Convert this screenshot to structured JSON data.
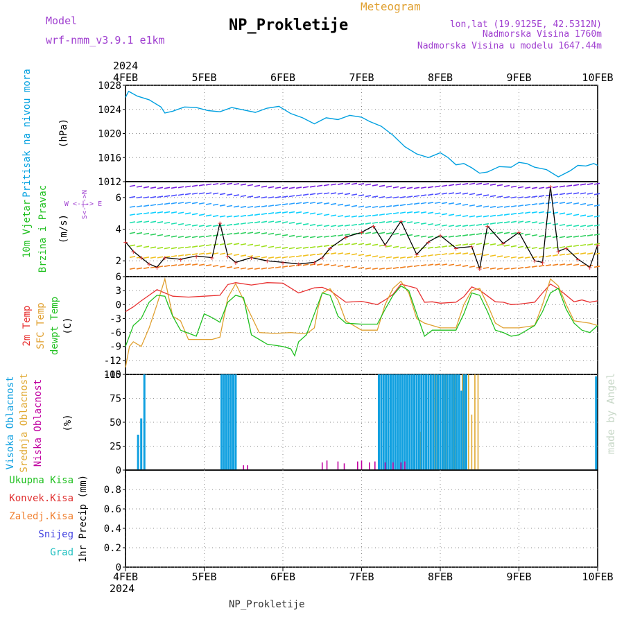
{
  "header": {
    "meteogram_label": "Meteogram",
    "title": "NP_Prokletije",
    "model_label": "Model",
    "model_name": "wrf-nmm_v3.9.1 e1km",
    "lonlat": "lon,lat (19.9125E, 42.5312N)",
    "elevation": "Nadmorska Visina 1760m",
    "model_elevation": "Nadmorska Visina u modelu 1647.44m",
    "footer_title": "NP_Prokletije",
    "watermark": "made by Angel"
  },
  "colors": {
    "pressure": "#00a0e0",
    "temp2m": "#e83030",
    "sfc_temp": "#e0a030",
    "dewpt": "#20c020",
    "cloud_high": "#10a0e0",
    "cloud_mid": "#e0a830",
    "cloud_low": "#c000a0",
    "title_purple": "#a040d0",
    "meteogram_orange": "#e0a030"
  },
  "x_axis": {
    "year": "2024",
    "ticks": [
      "4FEB",
      "5FEB",
      "6FEB",
      "7FEB",
      "8FEB",
      "9FEB",
      "10FEB"
    ]
  },
  "chart_data": [
    {
      "type": "line",
      "ylabel_line1": "Pritisak na nivou mora",
      "ylabel_units": "(hPa)",
      "ylim": [
        1012,
        1028
      ],
      "yticks": [
        "1012",
        "1016",
        "1020",
        "1024",
        "1028"
      ],
      "x_days": [
        0,
        0.04,
        0.15,
        0.3,
        0.45,
        0.5,
        0.6,
        0.75,
        0.9,
        1.05,
        1.2,
        1.35,
        1.5,
        1.65,
        1.8,
        1.95,
        2.1,
        2.25,
        2.4,
        2.55,
        2.7,
        2.85,
        3.0,
        3.1,
        3.25,
        3.4,
        3.55,
        3.7,
        3.85,
        4.0,
        4.1,
        4.2,
        4.3,
        4.4,
        4.5,
        4.6,
        4.75,
        4.9,
        5.0,
        5.1,
        5.2,
        5.35,
        5.5,
        5.65,
        5.75,
        5.85,
        5.95,
        6.0
      ],
      "values": [
        1026.0,
        1027.0,
        1026.2,
        1025.6,
        1024.4,
        1023.4,
        1023.7,
        1024.4,
        1024.3,
        1023.8,
        1023.6,
        1024.3,
        1023.9,
        1023.5,
        1024.2,
        1024.5,
        1023.3,
        1022.6,
        1021.6,
        1022.6,
        1022.3,
        1023.0,
        1022.7,
        1022.0,
        1021.2,
        1019.7,
        1017.8,
        1016.6,
        1016.0,
        1016.8,
        1016.0,
        1014.8,
        1015.0,
        1014.3,
        1013.4,
        1013.6,
        1014.5,
        1014.4,
        1015.2,
        1015.0,
        1014.4,
        1014.0,
        1012.8,
        1013.8,
        1014.7,
        1014.6,
        1015.0,
        1014.7
      ]
    },
    {
      "type": "line",
      "ylabel_line1": "10m Vjetar",
      "ylabel_line2": "Brzina i Pravac",
      "ylabel_units": "(m/s)",
      "compass": "W <-|-> E",
      "compass_vertical": "S<-|->N",
      "ylim": [
        1,
        7
      ],
      "yticks": [
        "2",
        "4",
        "6"
      ],
      "x_days": [
        0,
        0.1,
        0.2,
        0.3,
        0.4,
        0.5,
        0.7,
        0.9,
        1.1,
        1.2,
        1.3,
        1.4,
        1.6,
        1.8,
        2.0,
        2.2,
        2.4,
        2.5,
        2.6,
        2.8,
        3.0,
        3.15,
        3.3,
        3.5,
        3.7,
        3.85,
        4.0,
        4.2,
        4.4,
        4.5,
        4.6,
        4.8,
        5.0,
        5.2,
        5.3,
        5.4,
        5.5,
        5.6,
        5.75,
        5.9,
        6.0
      ],
      "values": [
        3.2,
        2.6,
        2.2,
        1.8,
        1.6,
        2.2,
        2.1,
        2.3,
        2.2,
        4.4,
        2.3,
        1.9,
        2.2,
        2.0,
        1.9,
        1.8,
        1.9,
        2.2,
        2.8,
        3.5,
        3.8,
        4.2,
        3.0,
        4.5,
        2.4,
        3.2,
        3.6,
        2.8,
        2.9,
        1.5,
        4.2,
        3.1,
        3.8,
        2.0,
        1.9,
        6.7,
        2.6,
        2.8,
        2.1,
        1.6,
        3.0
      ]
    },
    {
      "type": "line",
      "ylabel_line1": "2m Temp",
      "ylabel_line2": "SFC Temp",
      "ylabel_line3": "dewpt Temp",
      "ylabel_units": "(C)",
      "ylim": [
        -15,
        6
      ],
      "yticks": [
        "-15",
        "-12",
        "-9",
        "-6",
        "-3",
        "0",
        "3",
        "6"
      ],
      "series": [
        {
          "name": "2m Temp",
          "x_days": [
            0,
            0.1,
            0.2,
            0.3,
            0.4,
            0.5,
            0.6,
            0.8,
            1.0,
            1.2,
            1.3,
            1.4,
            1.6,
            1.8,
            2.0,
            2.2,
            2.4,
            2.5,
            2.6,
            2.8,
            3.0,
            3.2,
            3.3,
            3.4,
            3.5,
            3.7,
            3.8,
            3.9,
            4.0,
            4.2,
            4.3,
            4.4,
            4.5,
            4.7,
            4.8,
            4.9,
            5.0,
            5.2,
            5.3,
            5.4,
            5.5,
            5.7,
            5.8,
            5.9,
            6.0
          ],
          "values": [
            -1.5,
            -0.5,
            0.8,
            2.0,
            3.2,
            2.5,
            1.8,
            1.6,
            1.8,
            2.0,
            4.3,
            4.7,
            4.2,
            4.7,
            4.6,
            2.5,
            3.6,
            3.7,
            3.0,
            0.5,
            0.7,
            0.0,
            1.0,
            2.2,
            4.4,
            3.5,
            0.5,
            0.6,
            0.3,
            0.5,
            1.7,
            3.8,
            3.1,
            0.6,
            0.5,
            0.0,
            0.1,
            0.5,
            2.5,
            4.4,
            3.4,
            0.6,
            1.0,
            0.5,
            0.8
          ]
        },
        {
          "name": "SFC Temp",
          "x_days": [
            0,
            0.05,
            0.1,
            0.2,
            0.3,
            0.4,
            0.5,
            0.6,
            0.7,
            0.8,
            1.0,
            1.1,
            1.2,
            1.3,
            1.4,
            1.5,
            1.7,
            1.9,
            2.1,
            2.3,
            2.4,
            2.45,
            2.5,
            2.6,
            2.7,
            2.8,
            3.0,
            3.2,
            3.3,
            3.4,
            3.5,
            3.6,
            3.7,
            3.8,
            4.0,
            4.2,
            4.3,
            4.4,
            4.5,
            4.6,
            4.7,
            4.8,
            5.0,
            5.2,
            5.3,
            5.4,
            5.5,
            5.6,
            5.7,
            5.9,
            6.0
          ],
          "values": [
            -13.5,
            -9.0,
            -8.0,
            -9.0,
            -5.0,
            0.0,
            5.5,
            -2.5,
            -3.5,
            -7.5,
            -7.5,
            -7.5,
            -7.0,
            1.5,
            4.5,
            1.0,
            -6.0,
            -6.2,
            -6.0,
            -6.3,
            -5.0,
            -0.5,
            2.5,
            3.4,
            1.0,
            -3.5,
            -5.5,
            -5.5,
            0.0,
            3.5,
            5.0,
            2.5,
            -3.0,
            -4.0,
            -5.0,
            -5.0,
            0.0,
            3.0,
            3.5,
            0.0,
            -4.0,
            -5.0,
            -5.0,
            -4.5,
            0.0,
            5.5,
            4.0,
            0.0,
            -3.5,
            -4.0,
            -4.5
          ]
        },
        {
          "name": "dewpt Temp",
          "x_days": [
            0,
            0.1,
            0.2,
            0.3,
            0.4,
            0.5,
            0.6,
            0.7,
            0.9,
            1.0,
            1.1,
            1.2,
            1.3,
            1.4,
            1.5,
            1.6,
            1.8,
            2.0,
            2.1,
            2.15,
            2.2,
            2.3,
            2.4,
            2.5,
            2.6,
            2.7,
            2.8,
            3.0,
            3.2,
            3.3,
            3.4,
            3.5,
            3.6,
            3.7,
            3.8,
            3.9,
            4.0,
            4.2,
            4.3,
            4.4,
            4.5,
            4.6,
            4.7,
            4.8,
            4.9,
            5.0,
            5.2,
            5.3,
            5.4,
            5.5,
            5.6,
            5.7,
            5.8,
            5.9,
            6.0
          ],
          "values": [
            -9.0,
            -4.5,
            -3.0,
            0.5,
            2.0,
            1.8,
            -2.5,
            -5.5,
            -6.8,
            -2.0,
            -2.8,
            -3.8,
            0.5,
            2.0,
            1.5,
            -6.5,
            -8.5,
            -9.0,
            -9.5,
            -11.0,
            -8.0,
            -6.5,
            -2.0,
            2.5,
            2.0,
            -2.5,
            -4.0,
            -4.2,
            -4.2,
            -1.0,
            2.0,
            4.0,
            3.0,
            -2.0,
            -6.8,
            -5.5,
            -5.5,
            -5.5,
            -2.0,
            2.5,
            2.0,
            -1.5,
            -5.5,
            -6.0,
            -6.8,
            -6.5,
            -4.5,
            -1.5,
            2.5,
            3.5,
            -1.0,
            -4.0,
            -5.5,
            -6.0,
            -4.5
          ]
        }
      ]
    },
    {
      "type": "bar",
      "ylabel_line1": "Visoka Oblacnost",
      "ylabel_line2": "Srednja Oblacnost",
      "ylabel_line3": "Niska Oblacnost",
      "ylabel_units": "(%)",
      "ylim": [
        0,
        100
      ],
      "yticks": [
        "0",
        "25",
        "50",
        "75",
        "100"
      ],
      "series": [
        {
          "name": "Visoka Oblacnost",
          "x_days": [
            0.16,
            0.2,
            0.24,
            1.22,
            1.25,
            1.28,
            1.31,
            1.34,
            1.37,
            1.4,
            3.22,
            3.25,
            3.28,
            3.31,
            3.34,
            3.37,
            3.4,
            3.43,
            3.46,
            3.49,
            3.52,
            3.55,
            3.58,
            3.61,
            3.64,
            3.67,
            3.7,
            3.73,
            3.76,
            3.79,
            3.82,
            3.85,
            3.88,
            3.91,
            3.94,
            3.97,
            4.0,
            4.03,
            4.06,
            4.09,
            4.12,
            4.15,
            4.18,
            4.21,
            4.24,
            4.27,
            4.3,
            4.33,
            5.98
          ],
          "values": [
            37,
            54,
            100,
            100,
            100,
            100,
            100,
            100,
            100,
            100,
            100,
            100,
            100,
            100,
            100,
            100,
            100,
            100,
            100,
            100,
            100,
            100,
            100,
            100,
            100,
            100,
            100,
            100,
            100,
            100,
            100,
            100,
            100,
            100,
            100,
            100,
            100,
            100,
            100,
            100,
            100,
            100,
            100,
            100,
            100,
            83,
            100,
            100,
            98
          ]
        },
        {
          "name": "Srednja Oblacnost",
          "x_days": [
            3.75,
            3.85,
            3.88,
            3.92,
            3.96,
            4.0,
            4.04,
            4.08,
            4.12,
            4.16,
            4.2,
            4.24,
            4.28,
            4.32,
            4.36,
            4.4,
            4.44,
            4.48
          ],
          "values": [
            40,
            58,
            63,
            100,
            100,
            100,
            100,
            100,
            100,
            100,
            100,
            100,
            100,
            100,
            100,
            58,
            100,
            100
          ]
        },
        {
          "name": "Niska Oblacnost",
          "x_days": [
            1.5,
            1.55,
            2.5,
            2.56,
            2.7,
            2.78,
            2.95,
            3.0,
            3.1,
            3.17,
            3.3,
            3.4,
            3.5,
            3.55
          ],
          "values": [
            5,
            5,
            8,
            10,
            9,
            7,
            9,
            10,
            8,
            9,
            8,
            8,
            8,
            9
          ]
        }
      ]
    },
    {
      "type": "bar",
      "ylabel_line1": "Ukupna Kisa",
      "ylabel_line2": "Konvek.Kisa",
      "ylabel_line3": "Zaledj.Kisa",
      "ylabel_line4": "Snijeg",
      "ylabel_line5": "Grad",
      "ylabel_units": "1hr Precip (mm)",
      "ylim": [
        0,
        1
      ],
      "yticks": [
        "0",
        "0.2",
        "0.4",
        "0.6",
        "0.8"
      ],
      "series": []
    }
  ]
}
